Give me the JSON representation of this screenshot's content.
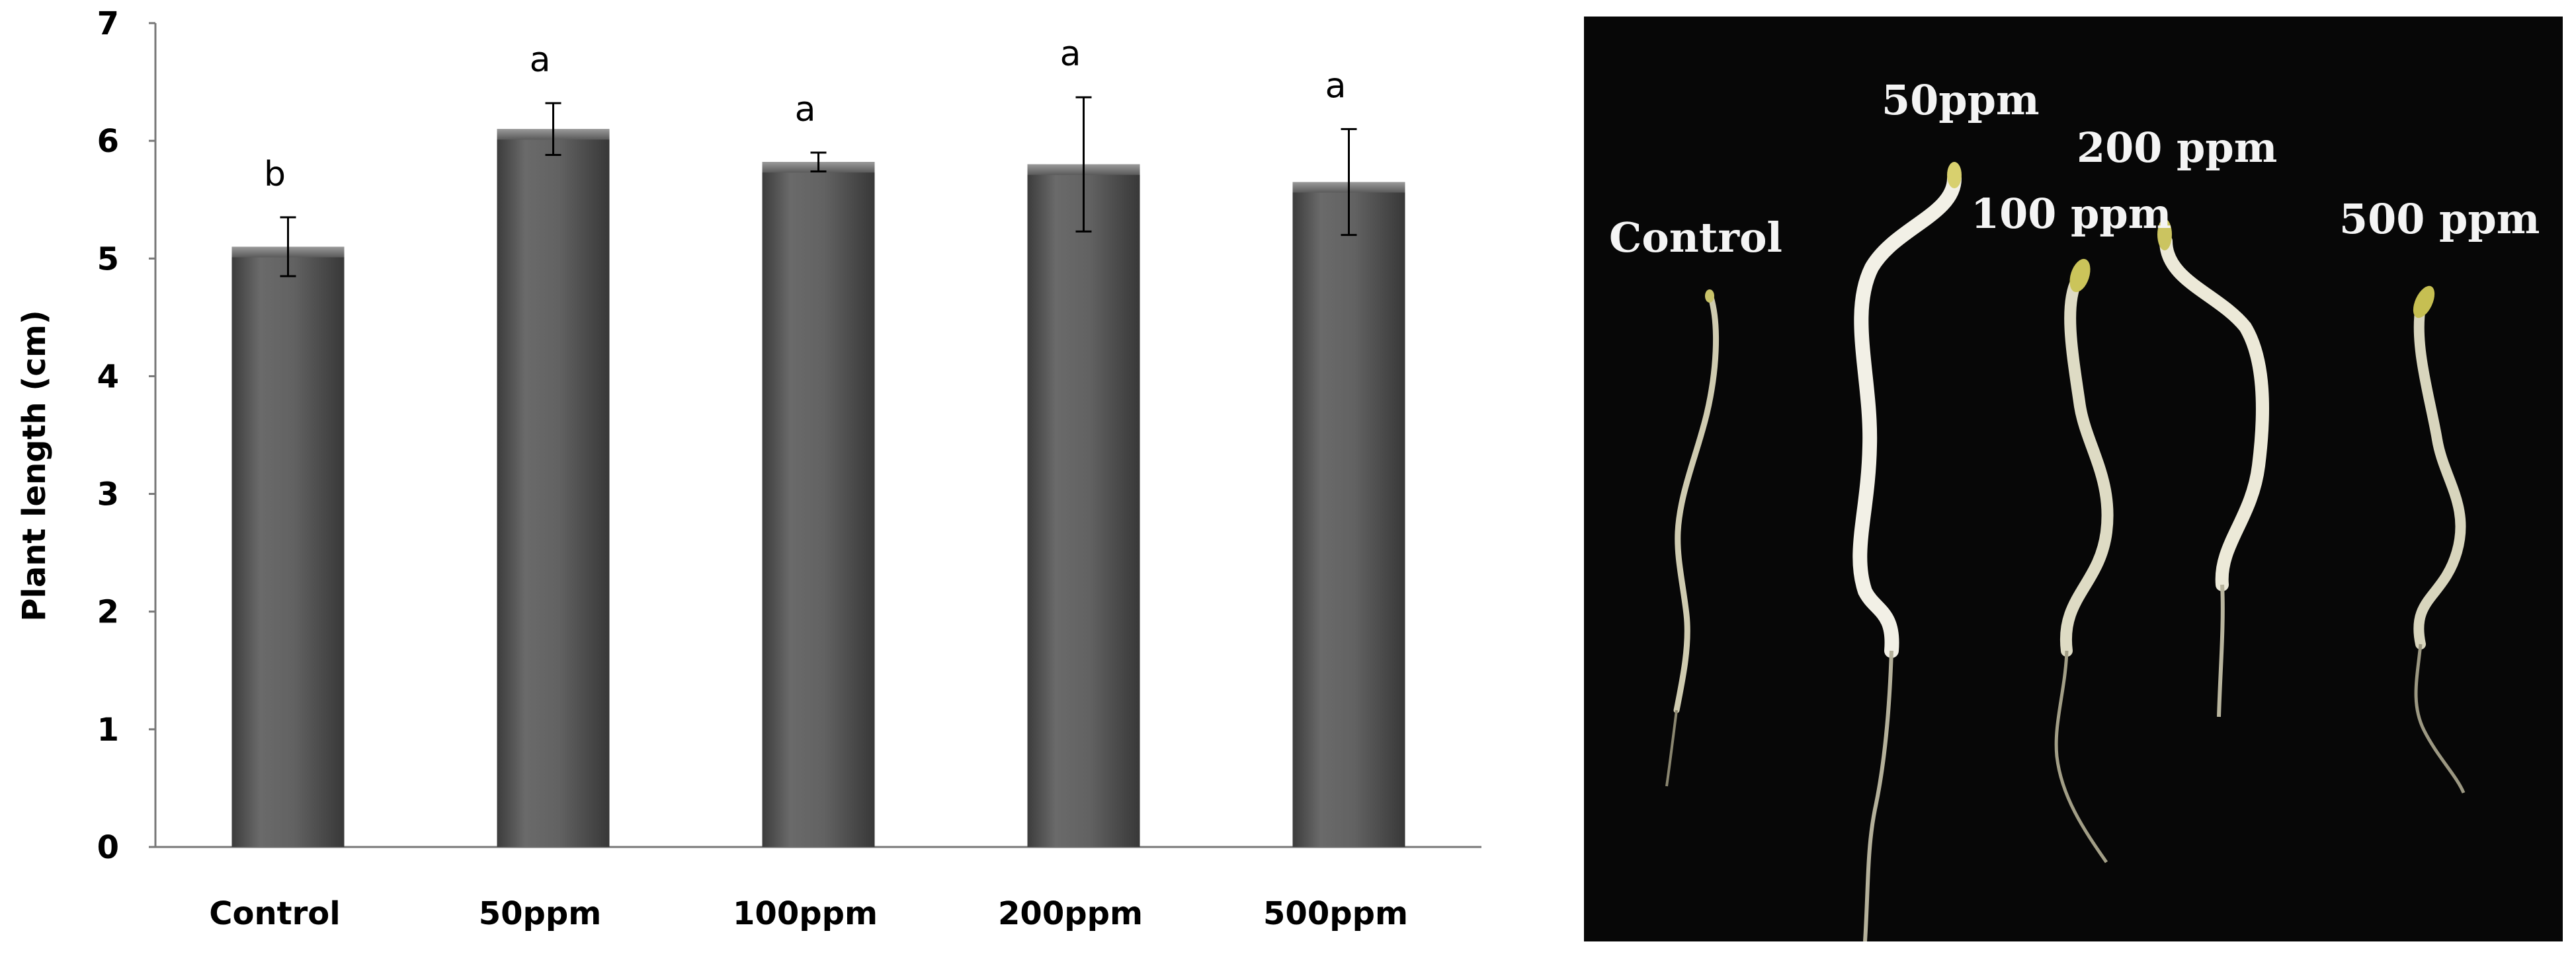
{
  "chart_data": {
    "type": "bar",
    "categories": [
      "Control",
      "50ppm",
      "100ppm",
      "200ppm",
      "500ppm"
    ],
    "values": [
      5.1,
      6.1,
      5.82,
      5.8,
      5.65
    ],
    "errors": [
      0.25,
      0.22,
      0.08,
      0.57,
      0.45
    ],
    "significance": [
      "b",
      "a",
      "a",
      "a",
      "a"
    ],
    "ylabel": "Plant length (cm)",
    "xlabel": "",
    "title": "",
    "ylim": [
      0,
      7
    ],
    "yticks": [
      "0",
      "1",
      "2",
      "3",
      "4",
      "5",
      "6",
      "7"
    ],
    "bar_color": "#5f5f5f",
    "grid": false,
    "legend": "none"
  },
  "photo": {
    "background": "#070707",
    "labels": {
      "control": "Control",
      "p50": "50ppm",
      "p100": "100 ppm",
      "p200": "200 ppm",
      "p500": "500 ppm"
    }
  }
}
